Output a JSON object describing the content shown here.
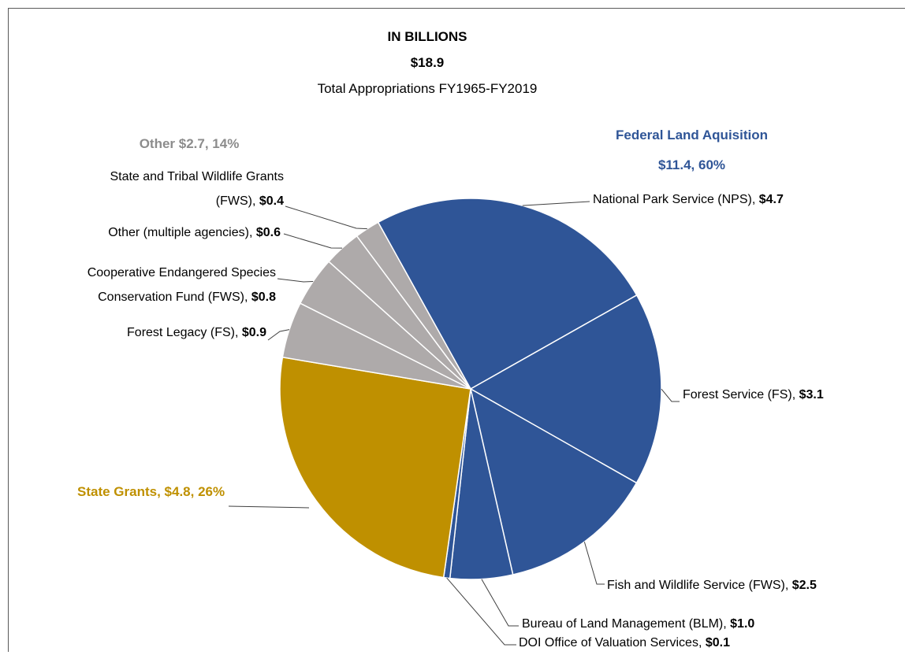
{
  "chart_data": {
    "type": "pie",
    "title": "IN BILLIONS",
    "total_label": "$18.9",
    "subtitle": "Total Appropriations FY1965-FY2019",
    "categories": [
      "National Park Service (NPS),",
      "Forest Service (FS),",
      "Fish and Wildlife Service (FWS),",
      "Bureau of Land Management (BLM),",
      "DOI Office of Valuation Services,",
      "State Grants",
      "Forest Legacy (FS),",
      "Cooperative Endangered Species Conservation Fund (FWS),",
      "Other (multiple agencies),",
      "State and Tribal Wildlife Grants (FWS),"
    ],
    "values": [
      4.7,
      3.1,
      2.5,
      1.0,
      0.1,
      4.8,
      0.9,
      0.8,
      0.6,
      0.4
    ],
    "value_labels": [
      "$4.7",
      "$3.1",
      "$2.5",
      "$1.0",
      "$0.1",
      null,
      "$0.9",
      "$0.8",
      "$0.6",
      "$0.4"
    ],
    "colors": [
      "#2F5597",
      "#2F5597",
      "#2F5597",
      "#2F5597",
      "#2F5597",
      "#BF9000",
      "#AEAAAA",
      "#AEAAAA",
      "#AEAAAA",
      "#AEAAAA"
    ],
    "groups": [
      {
        "label": "Federal Land Aquisition $11.4, 60%",
        "color": "#2F5597"
      },
      {
        "label": "State Grants, $4.8, 26%",
        "color": "#BF9000"
      },
      {
        "label": "Other $2.7, 14%",
        "color": "#8C8C8C"
      }
    ]
  }
}
